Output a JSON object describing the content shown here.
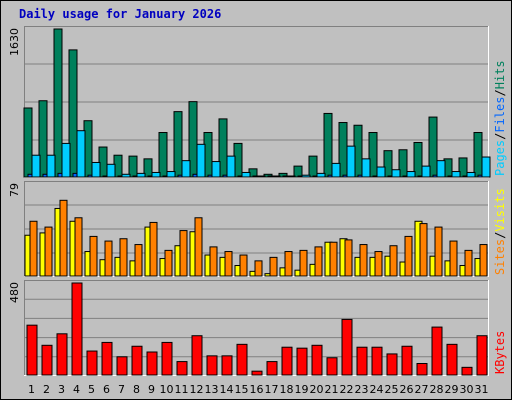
{
  "title": "Daily usage for January 2026",
  "colors": {
    "pages": "#00ccff",
    "files": "#0066ff",
    "hits": "#00805c",
    "sites": "#ffff00",
    "visits": "#ff8000",
    "kbytes": "#ff0000",
    "weekend_label": "#00805c",
    "weekday_label": "#000000"
  },
  "chart_data": [
    {
      "type": "bar",
      "panel": "hits-files-pages",
      "ymax_label": "1630",
      "ylim": [
        0,
        1630
      ],
      "right_labels": [
        {
          "text": "Pages",
          "color": "#00ccff"
        },
        {
          "text": "Files",
          "color": "#0066ff"
        },
        {
          "text": "Hits",
          "color": "#00805c"
        }
      ],
      "series": [
        {
          "name": "Hits",
          "color": "#00805c",
          "values": [
            760,
            840,
            1630,
            1400,
            620,
            330,
            240,
            230,
            200,
            490,
            720,
            830,
            490,
            640,
            370,
            90,
            30,
            40,
            120,
            230,
            700,
            600,
            570,
            490,
            290,
            300,
            380,
            660,
            200,
            210,
            490
          ]
        },
        {
          "name": "Files",
          "color": "#0066ff",
          "values": [
            30,
            30,
            40,
            40,
            20,
            10,
            10,
            10,
            10,
            10,
            20,
            30,
            20,
            20,
            10,
            5,
            5,
            5,
            5,
            10,
            20,
            20,
            20,
            10,
            10,
            10,
            10,
            20,
            10,
            10,
            20
          ]
        },
        {
          "name": "Pages",
          "color": "#00ccff",
          "values": [
            240,
            240,
            370,
            510,
            160,
            140,
            30,
            40,
            50,
            60,
            180,
            360,
            170,
            230,
            50,
            10,
            10,
            10,
            20,
            40,
            150,
            340,
            200,
            110,
            80,
            60,
            120,
            180,
            60,
            50,
            220
          ]
        }
      ]
    },
    {
      "type": "bar",
      "panel": "visits-sites",
      "ymax_label": "79",
      "ylim": [
        0,
        79
      ],
      "right_labels": [
        {
          "text": "Sites",
          "color": "#ff8000"
        },
        {
          "text": "Visits",
          "color": "#ffff00"
        }
      ],
      "series": [
        {
          "name": "Sites",
          "color": "#ffff00",
          "values": [
            35,
            37,
            58,
            47,
            21,
            14,
            16,
            13,
            42,
            15,
            26,
            38,
            18,
            16,
            9,
            4,
            2,
            7,
            5,
            10,
            29,
            32,
            16,
            16,
            17,
            12,
            47,
            17,
            13,
            9,
            15
          ]
        },
        {
          "name": "Visits",
          "color": "#ff8000",
          "values": [
            47,
            42,
            65,
            50,
            34,
            30,
            32,
            27,
            46,
            22,
            39,
            50,
            25,
            21,
            18,
            13,
            16,
            21,
            22,
            25,
            29,
            31,
            27,
            21,
            26,
            34,
            45,
            42,
            30,
            22,
            27
          ]
        }
      ]
    },
    {
      "type": "bar",
      "panel": "kbytes",
      "ymax_label": "480",
      "ylim": [
        0,
        480
      ],
      "right_labels": [
        {
          "text": "KBytes",
          "color": "#ff0000"
        }
      ],
      "series": [
        {
          "name": "KBytes",
          "color": "#ff0000",
          "values": [
            260,
            155,
            215,
            480,
            125,
            170,
            95,
            150,
            120,
            170,
            70,
            205,
            100,
            100,
            160,
            20,
            70,
            145,
            140,
            155,
            90,
            290,
            145,
            145,
            110,
            150,
            60,
            250,
            160,
            40,
            205
          ]
        }
      ]
    }
  ],
  "x_labels": [
    "1",
    "2",
    "3",
    "4",
    "5",
    "6",
    "7",
    "8",
    "9",
    "10",
    "11",
    "12",
    "13",
    "14",
    "15",
    "16",
    "17",
    "18",
    "19",
    "20",
    "21",
    "22",
    "23",
    "24",
    "25",
    "26",
    "27",
    "28",
    "29",
    "30",
    "31"
  ],
  "weekend_days": [
    3,
    4,
    10,
    11,
    17,
    18,
    24,
    25,
    31
  ]
}
